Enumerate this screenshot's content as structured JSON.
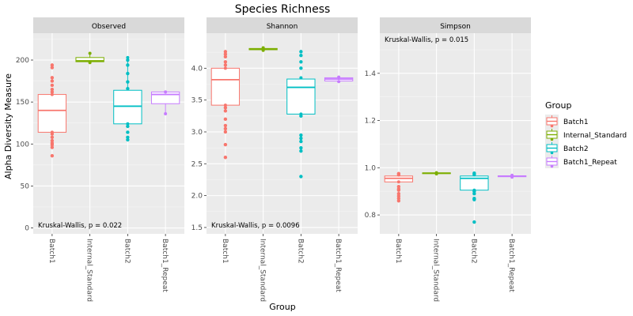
{
  "chart_data": {
    "type": "box",
    "title": "Species Richness",
    "xlabel": "Group",
    "ylabel": "Alpha Diversity Measure",
    "categories": [
      "Batch1",
      "Internal_Standard",
      "Batch2",
      "Batch1_Repeat"
    ],
    "legend": {
      "title": "Group",
      "position": "right",
      "entries": [
        {
          "label": "Batch1",
          "color": "#F8766D"
        },
        {
          "label": "Internal_Standard",
          "color": "#7CAE00"
        },
        {
          "label": "Batch2",
          "color": "#00BFC4"
        },
        {
          "label": "Batch1_Repeat",
          "color": "#C77CFF"
        }
      ]
    },
    "panels": [
      {
        "strip": "Observed",
        "ylim": [
          -7,
          232
        ],
        "yticks": [
          0,
          50,
          100,
          150,
          200
        ],
        "yticklabels": [
          "0",
          "50",
          "100",
          "150",
          "200"
        ],
        "annotation": "Kruskal-Wallis, p = 0.022",
        "annotation_pos": "bottom",
        "boxes": [
          {
            "q1": 114,
            "median": 140,
            "q3": 159,
            "whisker_low": 114,
            "whisker_high": 159,
            "outliers": [
              194,
              191,
              179,
              175,
              170,
              165,
              162,
              112,
              108,
              104,
              101,
              99,
              96,
              86
            ]
          },
          {
            "q1": 198,
            "median": 199,
            "q3": 203,
            "whisker_low": 197,
            "whisker_high": 208,
            "outliers": []
          },
          {
            "q1": 124,
            "median": 145,
            "q3": 164,
            "whisker_low": 124,
            "whisker_high": 203,
            "outliers": [
              200,
              194,
              184,
              174,
              166,
              121,
              114,
              108,
              105
            ]
          },
          {
            "q1": 148,
            "median": 159,
            "q3": 162,
            "whisker_low": 136,
            "whisker_high": 162,
            "outliers": []
          }
        ]
      },
      {
        "strip": "Shannon",
        "ylim": [
          1.4,
          4.55
        ],
        "yticks": [
          1.5,
          2.0,
          2.5,
          3.0,
          3.5,
          4.0
        ],
        "yticklabels": [
          "1.5",
          "2.0",
          "2.5",
          "3.0",
          "3.5",
          "4.0"
        ],
        "annotation": "Kruskal-Wallis, p = 0.0096",
        "annotation_pos": "bottom",
        "boxes": [
          {
            "q1": 3.42,
            "median": 3.82,
            "q3": 4.0,
            "whisker_low": 3.42,
            "whisker_high": 4.0,
            "outliers": [
              4.26,
              4.22,
              4.18,
              4.1,
              4.05,
              3.38,
              3.33,
              3.2,
              3.1,
              3.05,
              3.0,
              2.8,
              2.6
            ]
          },
          {
            "q1": 4.29,
            "median": 4.3,
            "q3": 4.31,
            "whisker_low": 4.28,
            "whisker_high": 4.32,
            "outliers": []
          },
          {
            "q1": 3.28,
            "median": 3.7,
            "q3": 3.83,
            "whisker_low": 3.28,
            "whisker_high": 3.85,
            "outliers": [
              4.26,
              4.2,
              4.1,
              4.0,
              3.25,
              2.95,
              2.9,
              2.85,
              2.75,
              2.7,
              2.3
            ]
          },
          {
            "q1": 3.8,
            "median": 3.83,
            "q3": 3.85,
            "whisker_low": 3.79,
            "whisker_high": 3.86,
            "outliers": []
          }
        ]
      },
      {
        "strip": "Simpson",
        "ylim": [
          0.72,
          1.57
        ],
        "yticks": [
          0.8,
          1.0,
          1.2,
          1.4
        ],
        "yticklabels": [
          "0.8",
          "1.0",
          "1.2",
          "1.4"
        ],
        "annotation": "Kruskal-Wallis, p = 0.015",
        "annotation_pos": "top",
        "boxes": [
          {
            "q1": 0.94,
            "median": 0.955,
            "q3": 0.965,
            "whisker_low": 0.94,
            "whisker_high": 0.975,
            "outliers": [
              0.975,
              0.97,
              0.92,
              0.91,
              0.905,
              0.89,
              0.88,
              0.87,
              0.86
            ]
          },
          {
            "q1": 0.975,
            "median": 0.977,
            "q3": 0.978,
            "whisker_low": 0.974,
            "whisker_high": 0.979,
            "outliers": []
          },
          {
            "q1": 0.905,
            "median": 0.955,
            "q3": 0.965,
            "whisker_low": 0.905,
            "whisker_high": 0.97,
            "outliers": [
              0.977,
              0.972,
              0.9,
              0.89,
              0.87,
              0.865,
              0.77
            ]
          },
          {
            "q1": 0.962,
            "median": 0.964,
            "q3": 0.966,
            "whisker_low": 0.96,
            "whisker_high": 0.968,
            "outliers": []
          }
        ]
      }
    ]
  }
}
